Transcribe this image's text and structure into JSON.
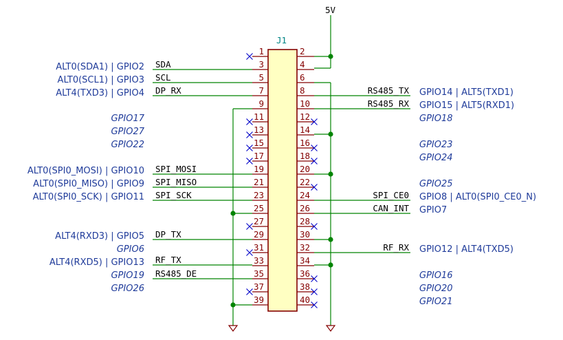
{
  "component": {
    "reference": "J1",
    "power_label": "5V"
  },
  "pins": [
    {
      "n": "1"
    },
    {
      "n": "2"
    },
    {
      "n": "3"
    },
    {
      "n": "4"
    },
    {
      "n": "5"
    },
    {
      "n": "6"
    },
    {
      "n": "7"
    },
    {
      "n": "8"
    },
    {
      "n": "9"
    },
    {
      "n": "10"
    },
    {
      "n": "11"
    },
    {
      "n": "12"
    },
    {
      "n": "13"
    },
    {
      "n": "14"
    },
    {
      "n": "15"
    },
    {
      "n": "16"
    },
    {
      "n": "17"
    },
    {
      "n": "18"
    },
    {
      "n": "19"
    },
    {
      "n": "20"
    },
    {
      "n": "21"
    },
    {
      "n": "22"
    },
    {
      "n": "23"
    },
    {
      "n": "24"
    },
    {
      "n": "25"
    },
    {
      "n": "26"
    },
    {
      "n": "27"
    },
    {
      "n": "28"
    },
    {
      "n": "29"
    },
    {
      "n": "30"
    },
    {
      "n": "31"
    },
    {
      "n": "32"
    },
    {
      "n": "33"
    },
    {
      "n": "34"
    },
    {
      "n": "35"
    },
    {
      "n": "36"
    },
    {
      "n": "37"
    },
    {
      "n": "38"
    },
    {
      "n": "39"
    },
    {
      "n": "40"
    }
  ],
  "nets": {
    "left": [
      "SDA",
      "SCL",
      "DP_RX",
      "SPI_MOSI",
      "SPI_MISO",
      "SPI_SCK",
      "DP_TX",
      "RF_TX",
      "RS485_DE"
    ],
    "right": [
      "RS485_TX",
      "RS485_RX",
      "SPI_CE0",
      "CAN_INT",
      "RF_RX"
    ]
  },
  "gpio_left": [
    "ALT0(SDA1) | GPIO2",
    "ALT0(SCL1) | GPIO3",
    "ALT4(TXD3) | GPIO4",
    "GPIO17",
    "GPIO27",
    "GPIO22",
    "ALT0(SPI0_MOSI) | GPIO10",
    "ALT0(SPI0_MISO) | GPIO9",
    "ALT0(SPI0_SCK) | GPIO11",
    "ALT4(RXD3) | GPIO5",
    "GPIO6",
    "ALT4(RXD5) | GPIO13",
    "GPIO19",
    "GPIO26"
  ],
  "gpio_right": [
    "GPIO14 | ALT5(TXD1)",
    "GPIO15 | ALT5(RXD1)",
    "GPIO18",
    "GPIO23",
    "GPIO24",
    "GPIO25",
    "GPIO8 | ALT0(SPI0_CE0_N)",
    "GPIO7",
    "GPIO12 | ALT4(TXD5)",
    "GPIO16",
    "GPIO20",
    "GPIO21"
  ]
}
